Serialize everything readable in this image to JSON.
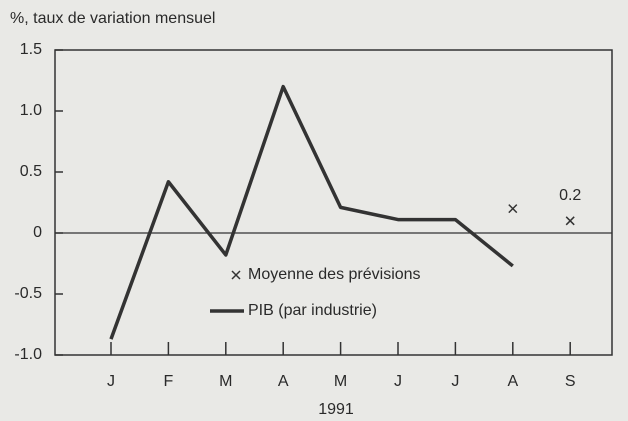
{
  "chart_data": {
    "type": "line",
    "ylabel": "%, taux de variation mensuel",
    "xlabel": "1991",
    "categories": [
      "J",
      "F",
      "M",
      "A",
      "M",
      "J",
      "J",
      "A",
      "S"
    ],
    "series": [
      {
        "name": "PIB (par industrie)",
        "color": "#333333",
        "style": "line",
        "values": [
          -0.87,
          0.42,
          -0.18,
          1.2,
          0.21,
          0.11,
          0.11,
          -0.27,
          null
        ]
      },
      {
        "name": "Moyenne des prévisions",
        "color": "#333333",
        "style": "x-marker",
        "values": [
          null,
          null,
          null,
          null,
          null,
          null,
          null,
          0.2,
          0.1
        ]
      }
    ],
    "annotations": [
      "0.2"
    ],
    "ylim": [
      -1,
      1.5
    ],
    "yticks": [
      {
        "value": 1.5,
        "label": "1.5"
      },
      {
        "value": 1,
        "label": "1.0"
      },
      0.5,
      0,
      -0.5,
      {
        "value": -1,
        "label": "-1.0"
      }
    ],
    "zero_line": true,
    "grid": false
  }
}
